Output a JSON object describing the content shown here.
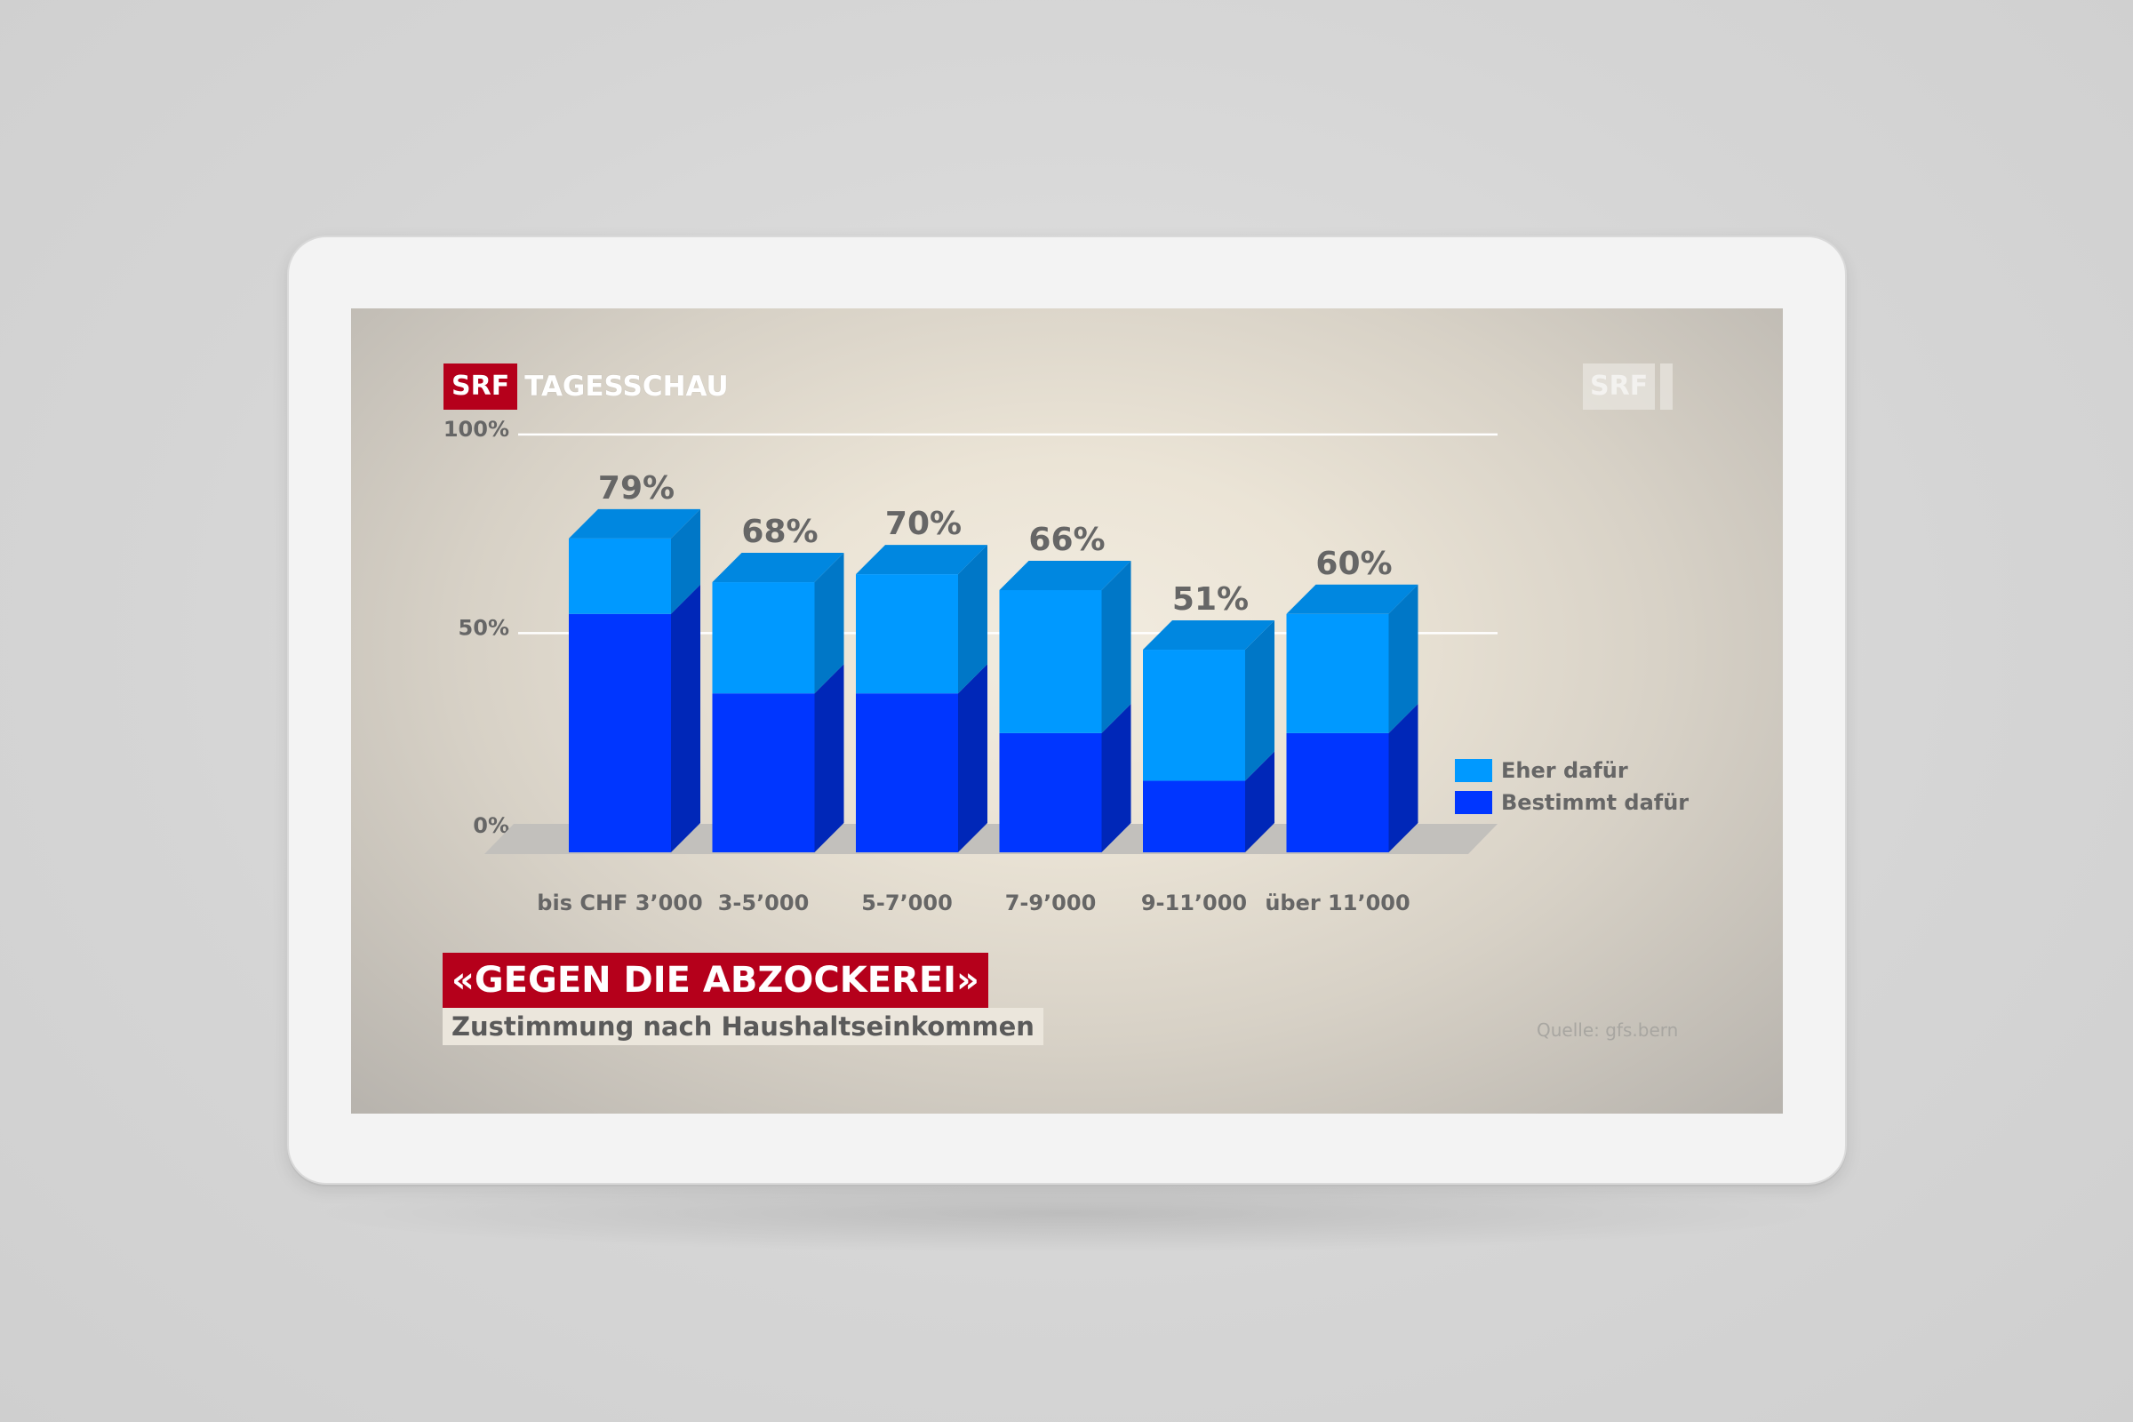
{
  "broadcaster": {
    "logo_text": "SRF",
    "show_name": "TAGESSCHAU",
    "channel_text": "SRF"
  },
  "headline": "«GEGEN DIE ABZOCKEREI»",
  "subline": "Zustimmung nach Haushaltseinkommen",
  "source": "Quelle: gfs.bern",
  "colors": {
    "brand_red": "#b5001b",
    "eher_front": "#0099ff",
    "bestimmt_front": "#0036ff"
  },
  "legend": [
    {
      "label": "Eher dafür",
      "color": "#0099ff"
    },
    {
      "label": "Bestimmt dafür",
      "color": "#0036ff"
    }
  ],
  "chart_data": {
    "type": "bar",
    "stacked": true,
    "three_d": true,
    "categories": [
      "bis CHF 3’000",
      "3-5’000",
      "5-7’000",
      "7-9’000",
      "9-11’000",
      "über 11’000"
    ],
    "series": [
      {
        "name": "Bestimmt dafür",
        "values": [
          60,
          40,
          40,
          30,
          18,
          30
        ]
      },
      {
        "name": "Eher dafür",
        "values": [
          19,
          28,
          30,
          36,
          33,
          30
        ]
      }
    ],
    "totals": [
      79,
      68,
      70,
      66,
      51,
      60
    ],
    "total_labels": [
      "79%",
      "68%",
      "70%",
      "66%",
      "51%",
      "60%"
    ],
    "y_ticks": [
      {
        "value": 0,
        "label": "0%"
      },
      {
        "value": 50,
        "label": "50%"
      },
      {
        "value": 100,
        "label": "100%"
      }
    ],
    "ylim": [
      0,
      100
    ],
    "grid": true,
    "legend_position": "right"
  }
}
